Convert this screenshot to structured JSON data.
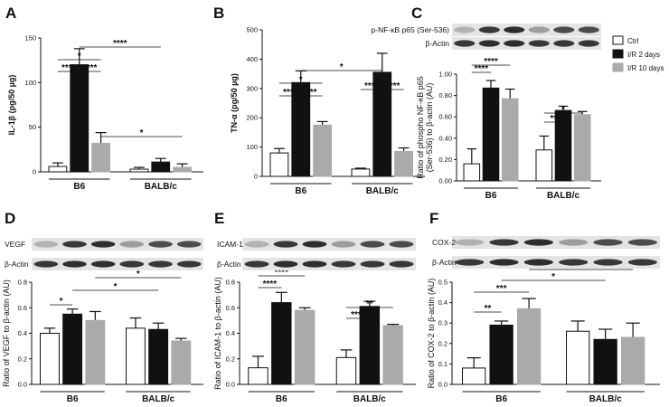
{
  "chart_data": [
    {
      "type": "bar",
      "panel": "A",
      "y_label": "IL-1β (pg/50 µg)",
      "categories": [
        "B6",
        "BALB/c"
      ],
      "series": [
        {
          "name": "Ctrl",
          "color": "#ffffff",
          "values": [
            6,
            3
          ],
          "errors": [
            4,
            2
          ]
        },
        {
          "name": "I/R 2 days",
          "color": "#111111",
          "values": [
            120,
            11
          ],
          "errors": [
            18,
            4
          ]
        },
        {
          "name": "I/R 10 days",
          "color": "#aaaaaa",
          "values": [
            32,
            5
          ],
          "errors": [
            12,
            4
          ]
        }
      ],
      "ylim": [
        0,
        150
      ],
      "yticks": [
        0,
        50,
        100,
        150
      ],
      "annotations": [
        "****",
        "*",
        "****",
        "****",
        "*"
      ]
    },
    {
      "type": "bar",
      "panel": "B",
      "y_label": "TN-α (pg/50 µg)",
      "categories": [
        "B6",
        "BALB/c"
      ],
      "series": [
        {
          "name": "Ctrl",
          "color": "#ffffff",
          "values": [
            80,
            25
          ],
          "errors": [
            15,
            3
          ]
        },
        {
          "name": "I/R 2 days",
          "color": "#111111",
          "values": [
            320,
            355
          ],
          "errors": [
            40,
            65
          ]
        },
        {
          "name": "I/R 10 days",
          "color": "#aaaaaa",
          "values": [
            175,
            85
          ],
          "errors": [
            12,
            12
          ]
        }
      ],
      "ylim": [
        0,
        500
      ],
      "yticks": [
        0,
        100,
        200,
        300,
        400,
        500
      ],
      "annotations": [
        "*",
        "*",
        "****",
        "***",
        "****",
        "****"
      ]
    },
    {
      "type": "bar",
      "panel": "C",
      "y_label": [
        "Ratio of phospho NF-κB p65",
        "(Ser-536) to β-actin (AU)"
      ],
      "categories": [
        "B6",
        "BALB/c"
      ],
      "blot_labels": [
        "p-NF-κB p65 (Ser-536)",
        "β-Actin"
      ],
      "series": [
        {
          "name": "Ctrl",
          "color": "#ffffff",
          "values": [
            0.16,
            0.29
          ],
          "errors": [
            0.14,
            0.13
          ]
        },
        {
          "name": "I/R 2 days",
          "color": "#111111",
          "values": [
            0.87,
            0.66
          ],
          "errors": [
            0.07,
            0.04
          ]
        },
        {
          "name": "I/R 10 days",
          "color": "#aaaaaa",
          "values": [
            0.77,
            0.62
          ],
          "errors": [
            0.09,
            0.03
          ]
        }
      ],
      "ylim": [
        0,
        1
      ],
      "yticks": [
        {
          "value": 0,
          "label": "0.00"
        },
        {
          "value": 0.2,
          "label": "0.20"
        },
        {
          "value": 0.4,
          "label": "0.40"
        },
        {
          "value": 0.6,
          "label": "0.60"
        },
        {
          "value": 0.8,
          "label": "0.80"
        },
        {
          "value": 1,
          "label": "1.00"
        }
      ],
      "annotations": [
        "****",
        "****",
        "**",
        "*"
      ],
      "legend": "right"
    },
    {
      "type": "bar",
      "panel": "D",
      "y_label": "Ratio of VEGF to β-actin (AU)",
      "categories": [
        "B6",
        "BALB/c"
      ],
      "blot_labels": [
        "VEGF",
        "β-Actin"
      ],
      "series": [
        {
          "name": "Ctrl",
          "color": "#ffffff",
          "values": [
            0.4,
            0.44
          ],
          "errors": [
            0.04,
            0.08
          ]
        },
        {
          "name": "I/R 2 days",
          "color": "#111111",
          "values": [
            0.55,
            0.43
          ],
          "errors": [
            0.04,
            0.05
          ]
        },
        {
          "name": "I/R 10 days",
          "color": "#aaaaaa",
          "values": [
            0.5,
            0.34
          ],
          "errors": [
            0.07,
            0.02
          ]
        }
      ],
      "ylim": [
        0,
        0.8
      ],
      "yticks": [
        {
          "value": 0,
          "label": "0.0"
        },
        {
          "value": 0.2,
          "label": "0.2"
        },
        {
          "value": 0.4,
          "label": "0.4"
        },
        {
          "value": 0.6,
          "label": "0.6"
        },
        {
          "value": 0.8,
          "label": "0.8"
        }
      ],
      "annotations": [
        "*",
        "*",
        "*"
      ]
    },
    {
      "type": "bar",
      "panel": "E",
      "y_label": "Ratio of ICAM-1 to β-actin (AU)",
      "categories": [
        "B6",
        "BALB/c"
      ],
      "blot_labels": [
        "ICAM-1",
        "β-Actin"
      ],
      "series": [
        {
          "name": "Ctrl",
          "color": "#ffffff",
          "values": [
            0.13,
            0.21
          ],
          "errors": [
            0.09,
            0.06
          ]
        },
        {
          "name": "I/R 2 days",
          "color": "#111111",
          "values": [
            0.64,
            0.61
          ],
          "errors": [
            0.08,
            0.04
          ]
        },
        {
          "name": "I/R 10 days",
          "color": "#aaaaaa",
          "values": [
            0.58,
            0.46
          ],
          "errors": [
            0.02,
            0.01
          ]
        }
      ],
      "ylim": [
        0,
        0.8
      ],
      "yticks": [
        {
          "value": 0,
          "label": "0.0"
        },
        {
          "value": 0.2,
          "label": "0.2"
        },
        {
          "value": 0.4,
          "label": "0.4"
        },
        {
          "value": 0.6,
          "label": "0.6"
        },
        {
          "value": 0.8,
          "label": "0.8"
        }
      ],
      "annotations": [
        "****",
        "****",
        "**",
        "****"
      ]
    },
    {
      "type": "bar",
      "panel": "F",
      "y_label": "Ratio of COX-2 to β-actin (AU)",
      "categories": [
        "B6",
        "BALB/c"
      ],
      "blot_labels": [
        "COX-2",
        "β-Actin"
      ],
      "series": [
        {
          "name": "Ctrl",
          "color": "#ffffff",
          "values": [
            0.08,
            0.26
          ],
          "errors": [
            0.05,
            0.05
          ]
        },
        {
          "name": "I/R 2 days",
          "color": "#111111",
          "values": [
            0.29,
            0.22
          ],
          "errors": [
            0.02,
            0.05
          ]
        },
        {
          "name": "I/R 10 days",
          "color": "#aaaaaa",
          "values": [
            0.37,
            0.23
          ],
          "errors": [
            0.05,
            0.07
          ]
        }
      ],
      "ylim": [
        0,
        0.5
      ],
      "yticks": [
        {
          "value": 0,
          "label": "0.0"
        },
        {
          "value": 0.1,
          "label": "0.1"
        },
        {
          "value": 0.2,
          "label": "0.2"
        },
        {
          "value": 0.3,
          "label": "0.3"
        },
        {
          "value": 0.4,
          "label": "0.4"
        },
        {
          "value": 0.5,
          "label": "0.5"
        }
      ],
      "annotations": [
        "*",
        "*",
        "***",
        "**"
      ]
    }
  ]
}
